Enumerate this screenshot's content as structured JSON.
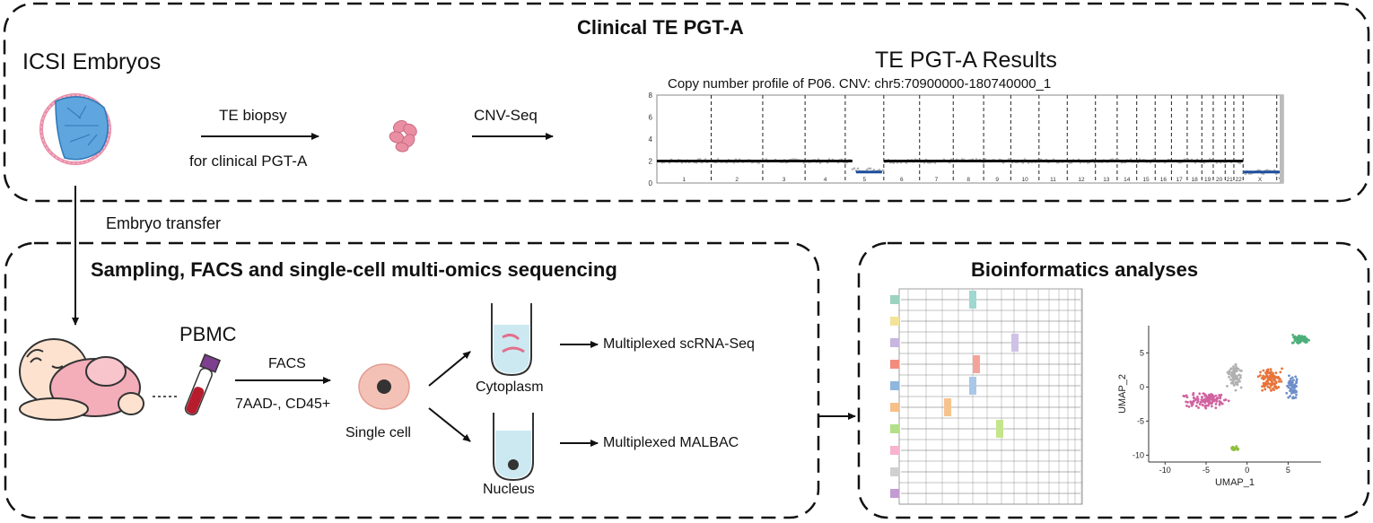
{
  "panels": {
    "top_title": "Clinical TE PGT-A",
    "bottom_left_title": "Sampling, FACS and single-cell multi-omics sequencing",
    "bottom_right_title": "Bioinformatics analyses"
  },
  "labels": {
    "icsi": "ICSI Embryos",
    "te_biopsy": "TE biopsy",
    "for_clinical": "for clinical PGT-A",
    "cnv_seq": "CNV-Seq",
    "results": "TE PGT-A Results",
    "profile": "Copy number profile of P06.   CNV: chr5:70900000-180740000_1",
    "embryo_transfer": "Embryo transfer",
    "pbmc": "PBMC",
    "facs": "FACS",
    "markers": "7AAD-, CD45+",
    "single_cell": "Single cell",
    "cytoplasm": "Cytoplasm",
    "nucleus": "Nucleus",
    "scrna": "Multiplexed scRNA-Seq",
    "malbac": "Multiplexed MALBAC"
  },
  "cnv_plot": {
    "y_ticks": [
      "0",
      "2",
      "4",
      "6",
      "8"
    ],
    "chromosomes": [
      "1",
      "2",
      "3",
      "4",
      "5",
      "6",
      "7",
      "8",
      "9",
      "10",
      "11",
      "12",
      "13",
      "14",
      "15",
      "16",
      "17",
      "18",
      "19",
      "20",
      "21",
      "22",
      "X",
      "Y"
    ],
    "colors": {
      "normal": "#111111",
      "loss": "#1f4e9e",
      "points": "#b5b5b5"
    }
  },
  "umap": {
    "xlabel": "UMAP_1",
    "ylabel": "UMAP_2",
    "x_ticks": [
      "-10",
      "-5",
      "0",
      "5"
    ],
    "y_ticks": [
      "5",
      "0",
      "-5",
      "-10"
    ],
    "cluster_colors": [
      "#4daf7a",
      "#b0b0b0",
      "#e8743b",
      "#6d8fc9",
      "#d163a0",
      "#8dbf3c"
    ]
  }
}
